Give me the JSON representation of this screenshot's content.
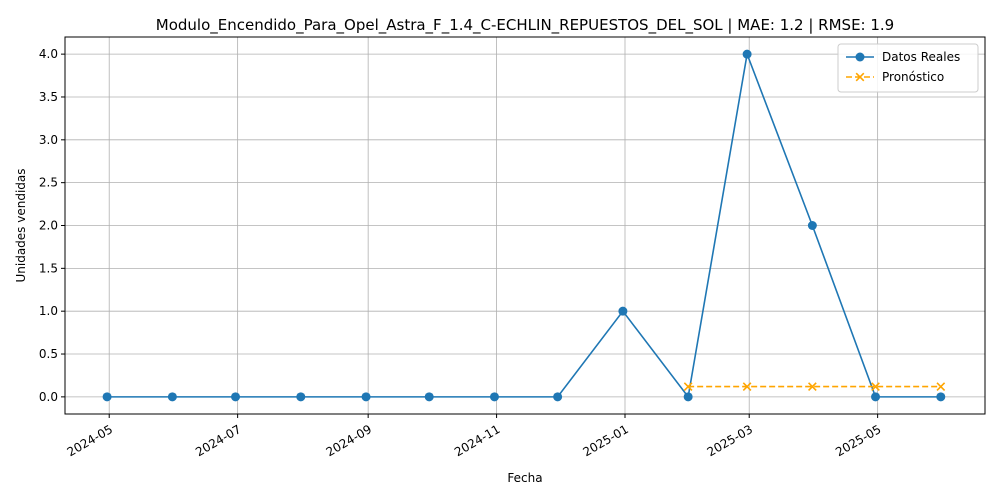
{
  "chart_data": {
    "type": "line",
    "title": "Modulo_Encendido_Para_Opel_Astra_F_1.4_C-ECHLIN_REPUESTOS_DEL_SOL | MAE: 1.2 | RMSE: 1.9",
    "xlabel": "Fecha",
    "ylabel": "Unidades vendidas",
    "xlim": [
      "2024-04-10",
      "2025-06-21"
    ],
    "ylim": [
      -0.2,
      4.2
    ],
    "x_ticks": [
      "2024-05",
      "2024-07",
      "2024-09",
      "2024-11",
      "2025-01",
      "2025-03",
      "2025-05"
    ],
    "y_ticks": [
      "0.0",
      "0.5",
      "1.0",
      "1.5",
      "2.0",
      "2.5",
      "3.0",
      "3.5",
      "4.0"
    ],
    "grid": true,
    "legend_position": "top-right",
    "series": [
      {
        "name": "Datos Reales",
        "color": "#1f77b4",
        "style": "solid",
        "marker": "circle",
        "x": [
          "2024-04-30",
          "2024-05-31",
          "2024-06-30",
          "2024-07-31",
          "2024-08-31",
          "2024-09-30",
          "2024-10-31",
          "2024-11-30",
          "2024-12-31",
          "2025-01-31",
          "2025-02-28",
          "2025-03-31",
          "2025-04-30",
          "2025-05-31"
        ],
        "values": [
          0,
          0,
          0,
          0,
          0,
          0,
          0,
          0,
          1,
          0,
          4,
          2,
          0,
          0
        ]
      },
      {
        "name": "Pronóstico",
        "color": "#ffa500",
        "style": "dashed",
        "marker": "x",
        "x": [
          "2025-01-31",
          "2025-02-28",
          "2025-03-31",
          "2025-04-30",
          "2025-05-31"
        ],
        "values": [
          0.12,
          0.12,
          0.12,
          0.12,
          0.12
        ]
      }
    ]
  }
}
